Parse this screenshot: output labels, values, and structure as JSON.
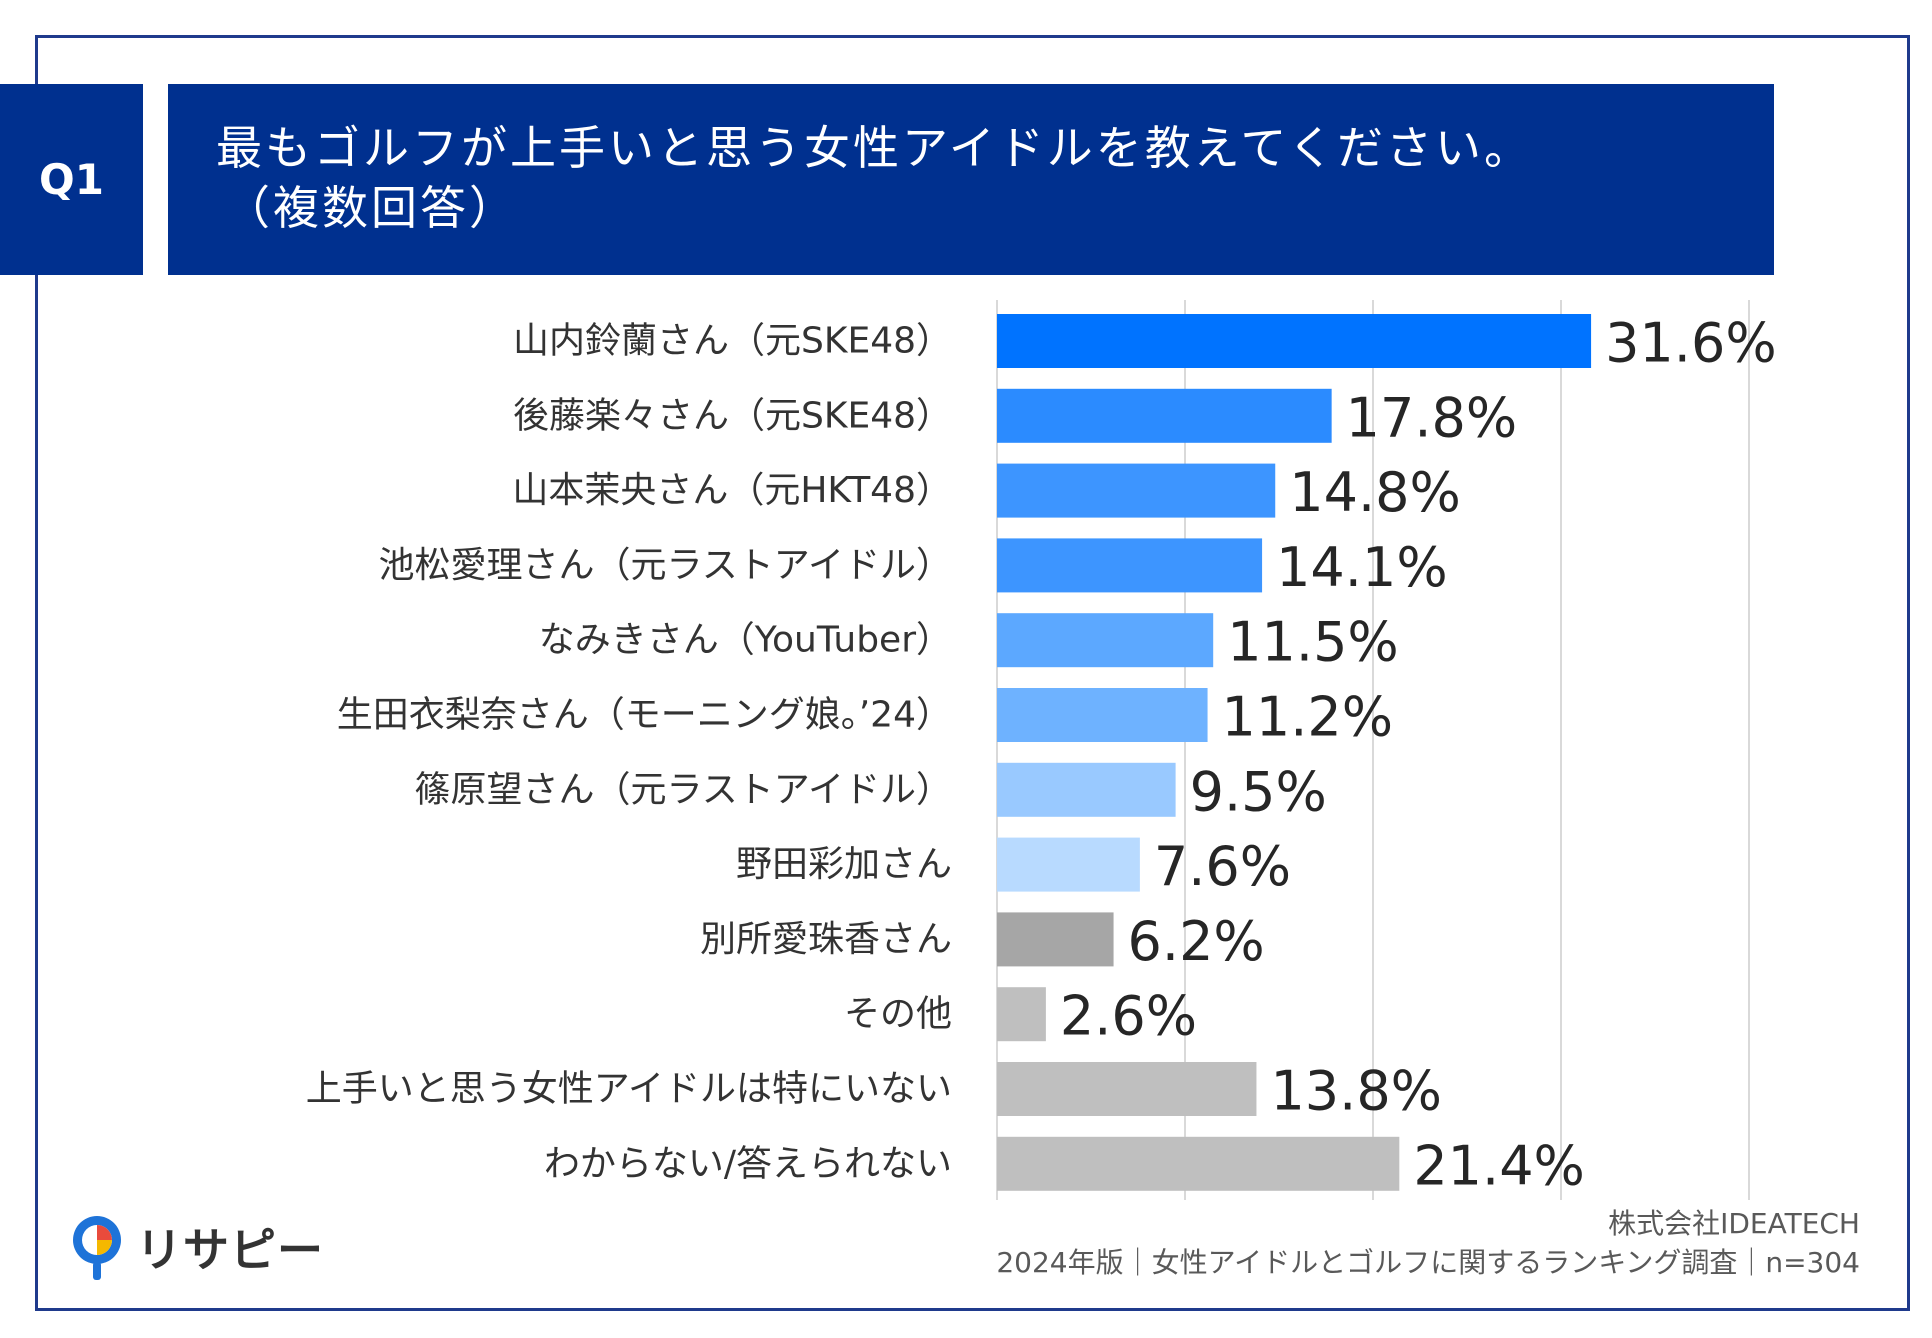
{
  "question": {
    "number": "Q1",
    "title_line1": "最もゴルフが上手いと思う女性アイドルを教えてください。",
    "title_line2": "（複数回答）"
  },
  "chart_data": {
    "type": "bar",
    "orientation": "horizontal",
    "unit": "%",
    "xlim": [
      0,
      40
    ],
    "gridlines": [
      0,
      10,
      20,
      30,
      40
    ],
    "categories": [
      "山内鈴蘭さん（元SKE48）",
      "後藤楽々さん（元SKE48）",
      "山本茉央さん（元HKT48）",
      "池松愛理さん（元ラストアイドル）",
      "なみきさん（YouTuber）",
      "生田衣梨奈さん（モーニング娘。’24）",
      "篠原望さん（元ラストアイドル）",
      "野田彩加さん",
      "別所愛珠香さん",
      "その他",
      "上手いと思う女性アイドルは特にいない",
      "わからない/答えられない"
    ],
    "values": [
      31.6,
      17.8,
      14.8,
      14.1,
      11.5,
      11.2,
      9.5,
      7.6,
      6.2,
      2.6,
      13.8,
      21.4
    ],
    "labels": [
      "31.6%",
      "17.8%",
      "14.8%",
      "14.1%",
      "11.5%",
      "11.2%",
      "9.5%",
      "7.6%",
      "6.2%",
      "2.6%",
      "13.8%",
      "21.4%"
    ],
    "colors": [
      "#0073ff",
      "#2b8bff",
      "#3d95ff",
      "#3d95ff",
      "#5ca8ff",
      "#6eb2ff",
      "#99c9ff",
      "#b8daff",
      "#a6a6a6",
      "#bfbfbf",
      "#bfbfbf",
      "#bfbfbf"
    ]
  },
  "footer": {
    "company": "株式会社IDEATECH",
    "survey": "2024年版｜女性アイドルとゴルフに関するランキング調査｜n=304"
  },
  "logo": {
    "text": "リサピー",
    "colors": [
      "#1e73d8",
      "#e94b3c",
      "#f5b800"
    ]
  }
}
